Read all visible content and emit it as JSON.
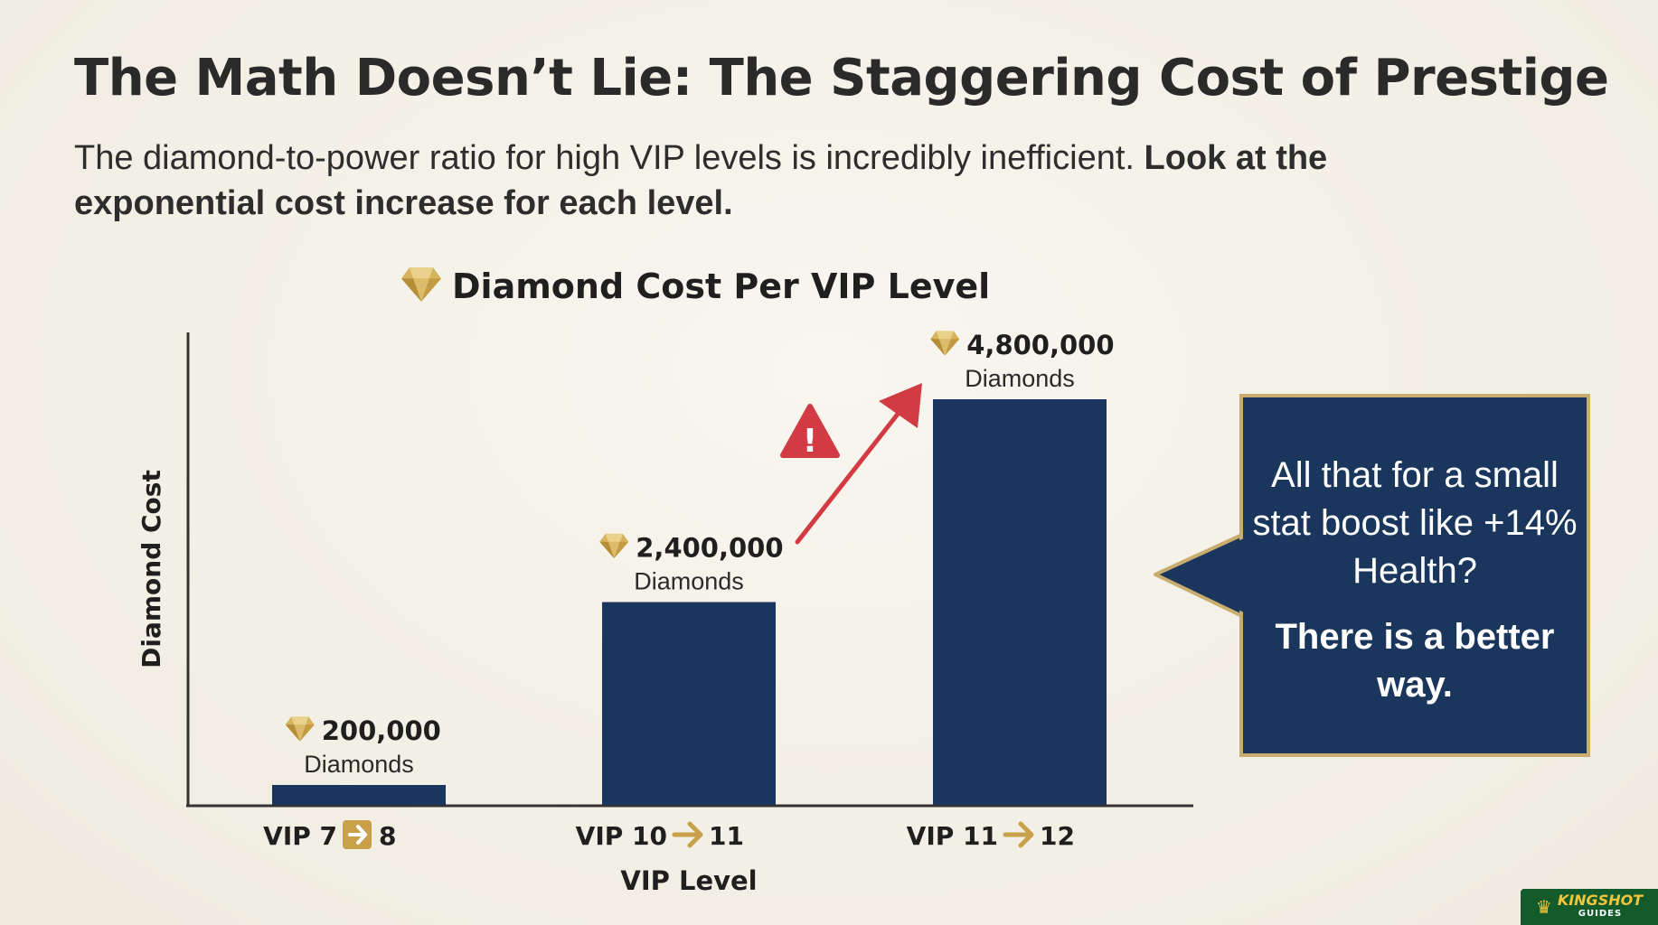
{
  "header": {
    "title": "The Math Doesn’t Lie: The Staggering Cost of Prestige",
    "subtitle_regular": "The diamond-to-power ratio for high VIP levels is incredibly inefficient.",
    "subtitle_bold": "Look at the exponential cost increase for each level."
  },
  "chart_data": {
    "type": "bar",
    "title": "Diamond Cost Per VIP Level",
    "xlabel": "VIP Level",
    "ylabel": "Diamond Cost",
    "categories": [
      {
        "from": "VIP 7",
        "to": "8"
      },
      {
        "from": "VIP 10",
        "to": "11"
      },
      {
        "from": "VIP 11",
        "to": "12"
      }
    ],
    "values": [
      200000,
      2400000,
      4800000
    ],
    "value_labels": [
      "200,000",
      "2,400,000",
      "4,800,000"
    ],
    "unit_label": "Diamonds",
    "ylim": [
      0,
      5000000
    ],
    "grid": false,
    "legend": "none",
    "annotation": {
      "type": "warning-arrow",
      "from_category": 1,
      "to_category": 2
    }
  },
  "callout": {
    "question": "All that for a small stat boost like +14% Health?",
    "answer": "There is a better way."
  },
  "logo": {
    "brand": "KINGSHOT",
    "sub": "GUIDES"
  },
  "colors": {
    "bar": "#1b365d",
    "gold": "#c9a14a",
    "warning": "#d23a44",
    "callout_bg": "#1b365d",
    "callout_border": "#c8ad6e",
    "axis": "#333333"
  }
}
